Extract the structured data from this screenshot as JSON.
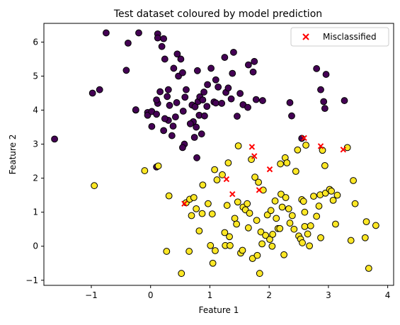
{
  "chart_data": {
    "type": "scatter",
    "title": "Test dataset coloured by model prediction",
    "xlabel": "Feature 1",
    "ylabel": "Feature 2",
    "xlim": [
      -1.8,
      4.1
    ],
    "ylim": [
      -1.15,
      6.55
    ],
    "xticks": [
      -1,
      0,
      1,
      2,
      3,
      4
    ],
    "yticks": [
      -1,
      0,
      1,
      2,
      3,
      4,
      5,
      6
    ],
    "grid": false,
    "legend": {
      "position": "top-right",
      "entries": [
        "Misclassified"
      ]
    },
    "colors": {
      "class0": "#440154",
      "class1": "#fde725",
      "edge": "#000000",
      "misclassified": "#ff0000"
    },
    "series": [
      {
        "predicted_class": 0,
        "points": [
          [
            -1.62,
            3.15
          ],
          [
            -0.98,
            4.5
          ],
          [
            -0.86,
            4.6
          ],
          [
            -0.75,
            6.27
          ],
          [
            -0.38,
            5.97
          ],
          [
            -0.2,
            6.27
          ],
          [
            -0.41,
            5.17
          ],
          [
            -0.25,
            4.0
          ],
          [
            -0.05,
            3.93
          ],
          [
            -0.05,
            3.85
          ],
          [
            0.02,
            3.96
          ],
          [
            0.02,
            3.52
          ],
          [
            0.1,
            3.88
          ],
          [
            0.12,
            4.2
          ],
          [
            0.1,
            4.3
          ],
          [
            0.16,
            4.54
          ],
          [
            0.12,
            6.24
          ],
          [
            0.12,
            6.12
          ],
          [
            0.22,
            6.1
          ],
          [
            0.24,
            5.5
          ],
          [
            0.19,
            5.87
          ],
          [
            0.22,
            3.4
          ],
          [
            0.28,
            4.4
          ],
          [
            0.32,
            4.14
          ],
          [
            0.3,
            3.7
          ],
          [
            0.39,
            5.23
          ],
          [
            0.42,
            3.8
          ],
          [
            0.45,
            5.65
          ],
          [
            0.44,
            4.22
          ],
          [
            0.36,
            3.25
          ],
          [
            0.47,
            5.0
          ],
          [
            0.51,
            5.5
          ],
          [
            0.54,
            5.1
          ],
          [
            0.55,
            3.97
          ],
          [
            0.57,
            3.0
          ],
          [
            0.6,
            4.6
          ],
          [
            0.7,
            4.15
          ],
          [
            0.72,
            3.66
          ],
          [
            0.74,
            3.2
          ],
          [
            0.75,
            4.1
          ],
          [
            0.77,
            3.5
          ],
          [
            0.8,
            4.25
          ],
          [
            0.79,
            5.16
          ],
          [
            0.82,
            3.85
          ],
          [
            0.83,
            4.39
          ],
          [
            0.86,
            3.3
          ],
          [
            0.88,
            4.3
          ],
          [
            0.9,
            4.53
          ],
          [
            0.91,
            3.83
          ],
          [
            0.96,
            4.75
          ],
          [
            1.02,
            5.23
          ],
          [
            1.07,
            4.24
          ],
          [
            1.14,
            4.68
          ],
          [
            1.2,
            4.2
          ],
          [
            1.25,
            5.55
          ],
          [
            1.27,
            4.52
          ],
          [
            1.31,
            4.65
          ],
          [
            1.36,
            4.33
          ],
          [
            1.38,
            5.08
          ],
          [
            1.4,
            5.7
          ],
          [
            1.46,
            3.82
          ],
          [
            1.51,
            4.49
          ],
          [
            1.56,
            4.16
          ],
          [
            1.64,
            4.08
          ],
          [
            1.65,
            5.33
          ],
          [
            1.73,
            5.12
          ],
          [
            1.75,
            5.43
          ],
          [
            1.78,
            4.31
          ],
          [
            1.89,
            4.28
          ],
          [
            2.35,
            4.22
          ],
          [
            2.38,
            3.83
          ],
          [
            2.8,
            5.22
          ],
          [
            2.87,
            4.6
          ],
          [
            2.92,
            4.25
          ],
          [
            2.94,
            4.05
          ],
          [
            2.96,
            5.05
          ],
          [
            2.55,
            3.17
          ],
          [
            3.27,
            4.28
          ],
          [
            0.24,
            3.75
          ],
          [
            0.78,
            2.6
          ],
          [
            0.1,
            2.33
          ],
          [
            -0.25,
            4.01
          ],
          [
            0.67,
            3.6
          ],
          [
            0.54,
            2.9
          ],
          [
            1.1,
            4.89
          ],
          [
            0.3,
            4.6
          ],
          [
            0.95,
            4.11
          ],
          [
            0.38,
            3.53
          ],
          [
            1.1,
            4.21
          ],
          [
            0.58,
            4.38
          ]
        ]
      },
      {
        "predicted_class": 1,
        "points": [
          [
            -0.95,
            1.78
          ],
          [
            -0.1,
            2.22
          ],
          [
            0.13,
            2.36
          ],
          [
            0.27,
            -0.15
          ],
          [
            0.31,
            1.48
          ],
          [
            0.52,
            -0.8
          ],
          [
            0.6,
            1.28
          ],
          [
            0.65,
            -0.15
          ],
          [
            0.66,
            1.38
          ],
          [
            0.69,
            0.9
          ],
          [
            0.73,
            1.43
          ],
          [
            0.77,
            1.1
          ],
          [
            0.82,
            0.45
          ],
          [
            0.87,
            0.96
          ],
          [
            0.88,
            1.8
          ],
          [
            0.97,
            1.25
          ],
          [
            1.01,
            0.02
          ],
          [
            1.04,
            0.95
          ],
          [
            1.05,
            -0.5
          ],
          [
            1.08,
            2.25
          ],
          [
            1.09,
            -0.13
          ],
          [
            1.12,
            1.95
          ],
          [
            1.21,
            2.1
          ],
          [
            1.25,
            0.4
          ],
          [
            1.26,
            0.02
          ],
          [
            1.29,
            1.2
          ],
          [
            1.31,
            2.45
          ],
          [
            1.33,
            0.28
          ],
          [
            1.34,
            0.02
          ],
          [
            1.42,
            0.82
          ],
          [
            1.47,
            1.3
          ],
          [
            1.48,
            2.95
          ],
          [
            1.52,
            -0.2
          ],
          [
            1.55,
            -0.12
          ],
          [
            1.56,
            1.15
          ],
          [
            1.6,
            1.07
          ],
          [
            1.63,
            1.25
          ],
          [
            1.65,
            0.54
          ],
          [
            1.67,
            0.97
          ],
          [
            1.7,
            2.55
          ],
          [
            1.72,
            -0.36
          ],
          [
            1.76,
            2.03
          ],
          [
            1.79,
            0.76
          ],
          [
            1.8,
            -0.27
          ],
          [
            1.82,
            1.88
          ],
          [
            1.84,
            -0.8
          ],
          [
            1.86,
            0.42
          ],
          [
            1.88,
            0.07
          ],
          [
            1.9,
            1.65
          ],
          [
            1.94,
            0.32
          ],
          [
            1.97,
            0.92
          ],
          [
            2.01,
            0.2
          ],
          [
            2.03,
            1.05
          ],
          [
            2.05,
            0.0
          ],
          [
            2.06,
            0.35
          ],
          [
            2.1,
            1.33
          ],
          [
            2.12,
            0.82
          ],
          [
            2.15,
            0.52
          ],
          [
            2.18,
            0.52
          ],
          [
            2.19,
            2.42
          ],
          [
            2.2,
            1.53
          ],
          [
            2.22,
            1.15
          ],
          [
            2.25,
            -0.25
          ],
          [
            2.27,
            2.6
          ],
          [
            2.28,
            1.43
          ],
          [
            2.3,
            2.45
          ],
          [
            2.33,
            1.1
          ],
          [
            2.35,
            0.68
          ],
          [
            2.39,
            0.9
          ],
          [
            2.42,
            0.5
          ],
          [
            2.45,
            2.2
          ],
          [
            2.48,
            2.83
          ],
          [
            2.5,
            0.3
          ],
          [
            2.53,
            0.21
          ],
          [
            2.55,
            1.37
          ],
          [
            2.56,
            0.1
          ],
          [
            2.58,
            1.32
          ],
          [
            2.6,
            0.58
          ],
          [
            2.62,
            2.97
          ],
          [
            2.65,
            0.36
          ],
          [
            2.68,
            0.01
          ],
          [
            2.7,
            0.6
          ],
          [
            2.75,
            1.47
          ],
          [
            2.8,
            0.88
          ],
          [
            2.84,
            1.18
          ],
          [
            2.86,
            1.51
          ],
          [
            2.9,
            2.82
          ],
          [
            2.94,
            2.37
          ],
          [
            2.95,
            1.56
          ],
          [
            3.02,
            1.67
          ],
          [
            3.05,
            1.62
          ],
          [
            3.08,
            1.35
          ],
          [
            3.12,
            0.65
          ],
          [
            3.15,
            1.5
          ],
          [
            3.32,
            2.9
          ],
          [
            3.38,
            0.17
          ],
          [
            3.42,
            1.93
          ],
          [
            3.45,
            1.25
          ],
          [
            3.62,
            0.25
          ],
          [
            3.64,
            0.72
          ],
          [
            3.68,
            -0.65
          ],
          [
            3.8,
            0.61
          ],
          [
            2.87,
            0.25
          ],
          [
            1.45,
            0.65
          ],
          [
            2.6,
            1.0
          ]
        ]
      }
    ],
    "misclassified": [
      [
        0.57,
        1.25
      ],
      [
        1.28,
        1.97
      ],
      [
        1.38,
        1.53
      ],
      [
        1.71,
        2.92
      ],
      [
        1.75,
        2.65
      ],
      [
        1.83,
        1.65
      ],
      [
        2.01,
        2.26
      ],
      [
        2.59,
        3.18
      ],
      [
        2.87,
        2.94
      ],
      [
        3.25,
        2.84
      ]
    ]
  }
}
